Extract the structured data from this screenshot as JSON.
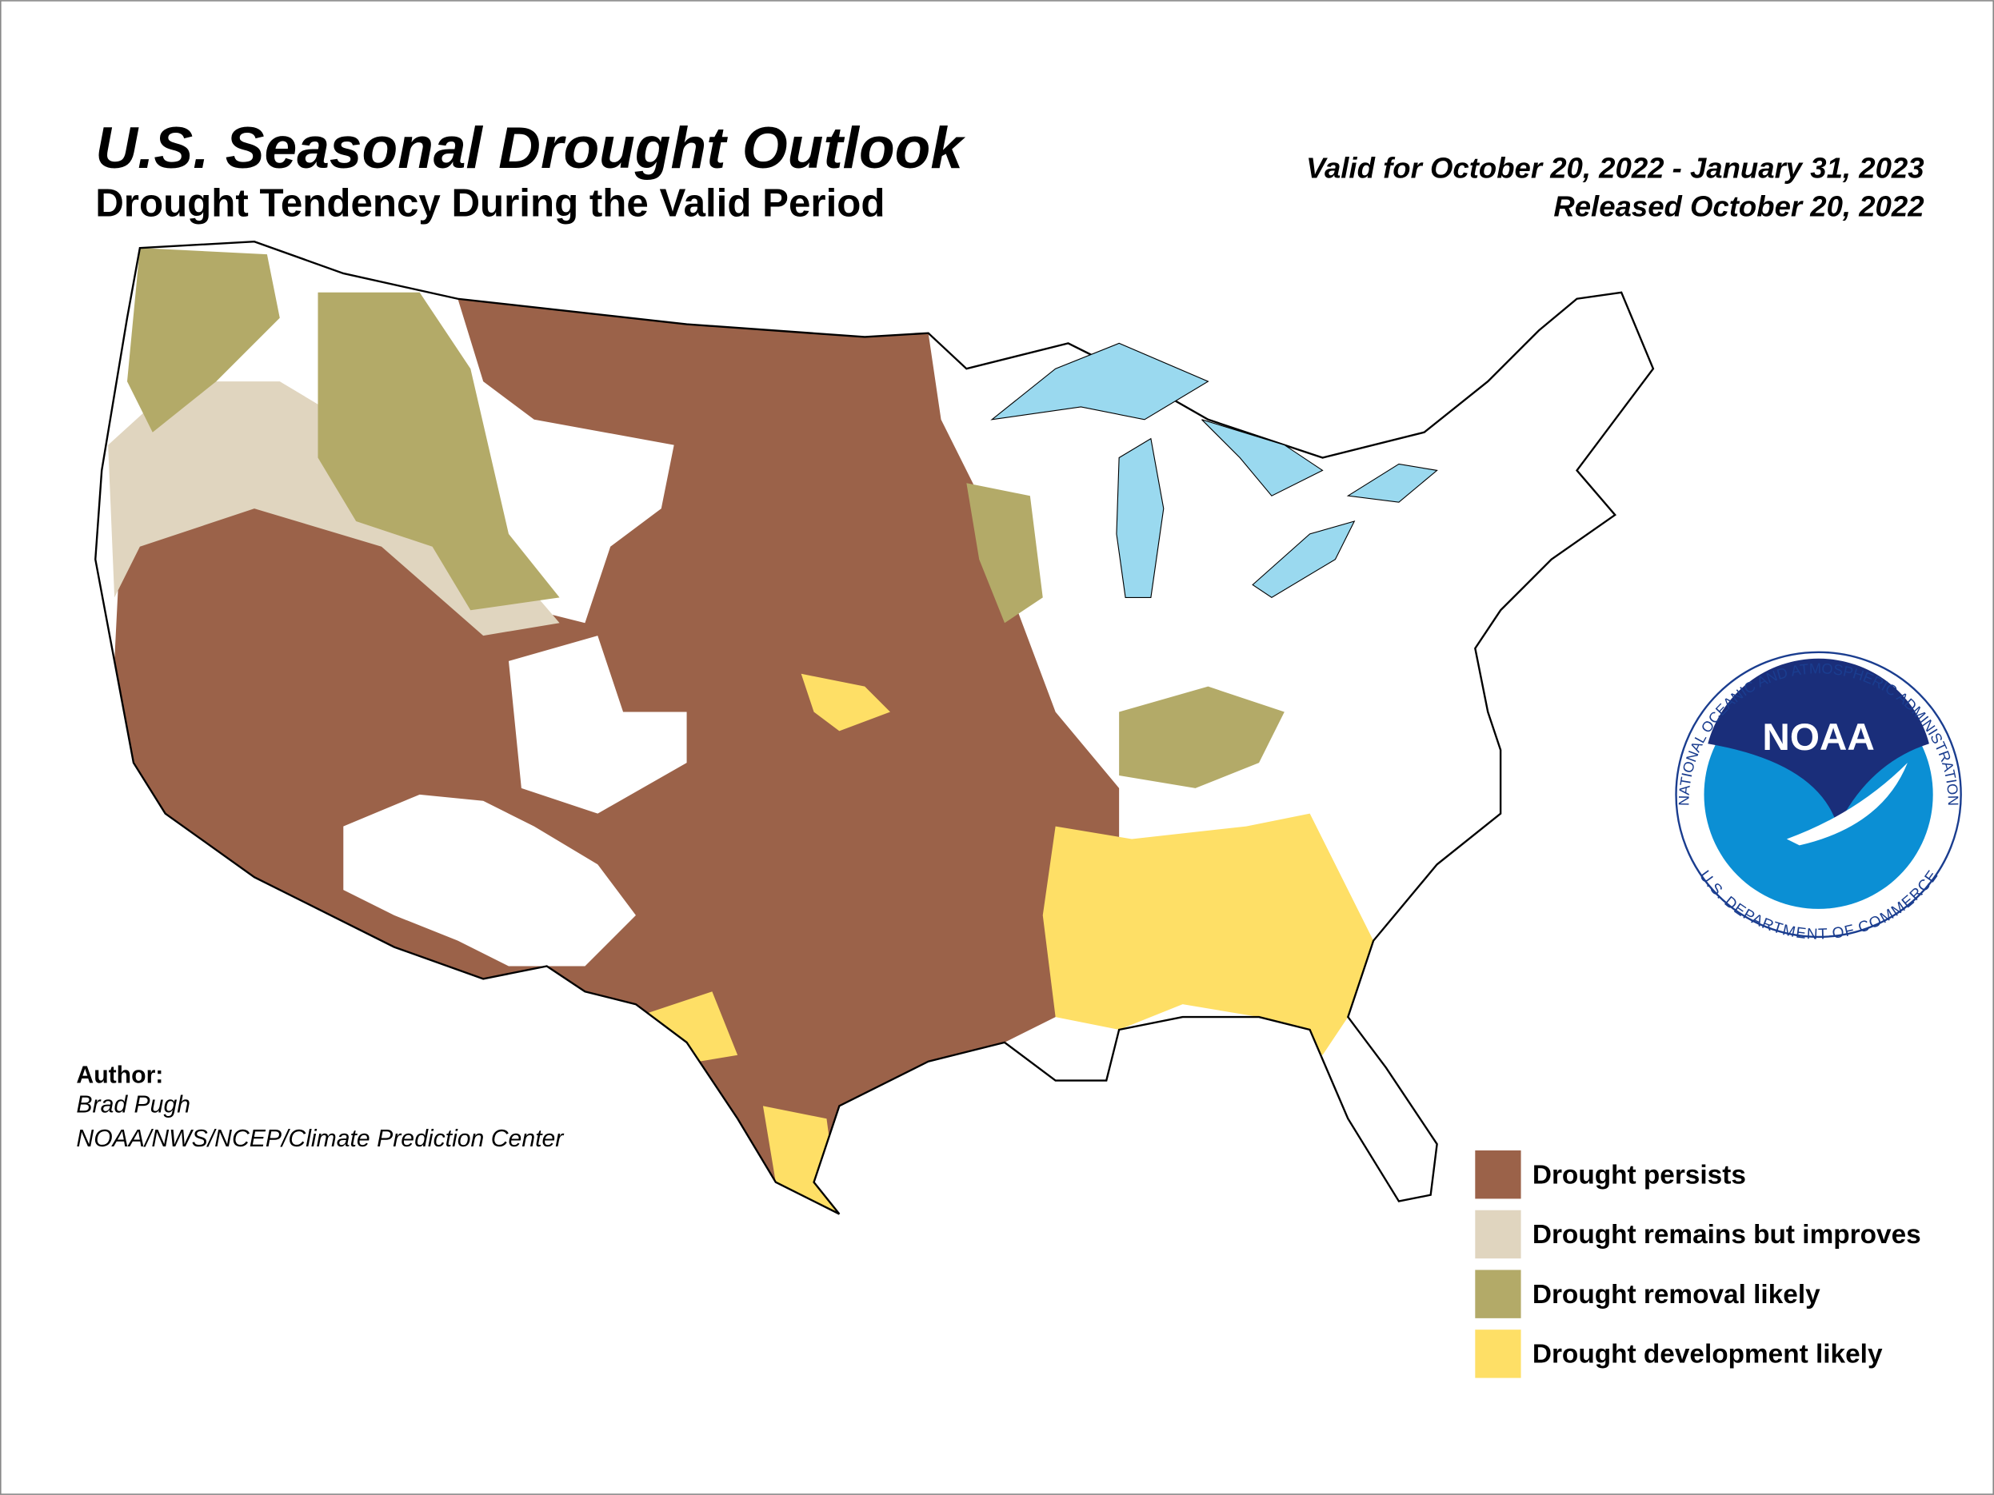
{
  "header": {
    "title": "U.S. Seasonal Drought Outlook",
    "subtitle": "Drought Tendency During the Valid Period",
    "valid": "Valid for October 20, 2022 - January 31, 2023",
    "released": "Released October 20, 2022"
  },
  "author": {
    "label": "Author:",
    "name": "Brad Pugh",
    "organization": "NOAA/NWS/NCEP/Climate Prediction Center"
  },
  "legend": [
    {
      "label": "Drought persists",
      "color": "#9b6249"
    },
    {
      "label": "Drought remains but improves",
      "color": "#e0d5bf"
    },
    {
      "label": "Drought removal likely",
      "color": "#b3aa68"
    },
    {
      "label": "Drought development likely",
      "color": "#fedf66"
    }
  ],
  "logo": {
    "name": "NOAA",
    "agency": "NATIONAL OCEANIC AND ATMOSPHERIC ADMINISTRATION",
    "department": "U.S. DEPARTMENT OF COMMERCE"
  }
}
